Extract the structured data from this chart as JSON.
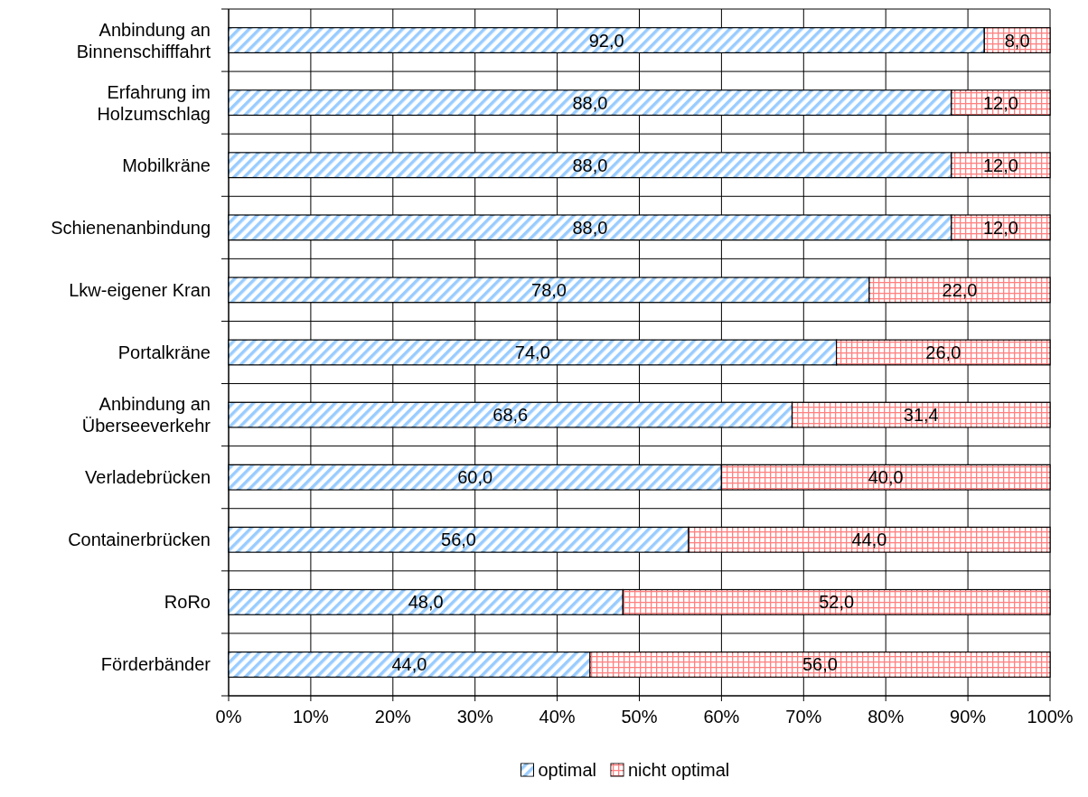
{
  "chart_data": {
    "type": "bar",
    "orientation": "horizontal",
    "stacked": true,
    "categories": [
      "Anbindung an\nBinnenschifffahrt",
      "Erfahrung im\nHolzumschlag",
      "Mobilkräne",
      "Schienenanbindung",
      "Lkw-eigener Kran",
      "Portalkräne",
      "Anbindung an\nÜberseeverkehr",
      "Verladebrücken",
      "Containerbrücken",
      "RoRo",
      "Förderbänder"
    ],
    "series": [
      {
        "name": "optimal",
        "color": "#99ccff",
        "values": [
          92,
          88,
          88,
          88,
          78,
          74,
          68.6,
          60,
          56,
          48,
          44
        ],
        "value_labels": [
          "92,0",
          "88,0",
          "88,0",
          "88,0",
          "78,0",
          "74,0",
          "68,6",
          "60,0",
          "56,0",
          "48,0",
          "44,0"
        ]
      },
      {
        "name": "nicht optimal",
        "color": "#ff8080",
        "values": [
          8,
          12,
          12,
          12,
          22,
          26,
          31.4,
          40,
          44,
          52,
          56
        ],
        "value_labels": [
          "8,0",
          "12,0",
          "12,0",
          "12,0",
          "22,0",
          "26,0",
          "31,4",
          "40,0",
          "44,0",
          "52,0",
          "56,0"
        ]
      }
    ],
    "xlim": [
      0,
      100
    ],
    "xticks": [
      {
        "value": 0,
        "label": "0%"
      },
      {
        "value": 10,
        "label": "10%"
      },
      {
        "value": 20,
        "label": "20%"
      },
      {
        "value": 30,
        "label": "30%"
      },
      {
        "value": 40,
        "label": "40%"
      },
      {
        "value": 50,
        "label": "50%"
      },
      {
        "value": 60,
        "label": "60%"
      },
      {
        "value": 70,
        "label": "70%"
      },
      {
        "value": 80,
        "label": "80%"
      },
      {
        "value": 90,
        "label": "90%"
      },
      {
        "value": 100,
        "label": "100%"
      }
    ],
    "grid": true,
    "legend": "bottom"
  }
}
